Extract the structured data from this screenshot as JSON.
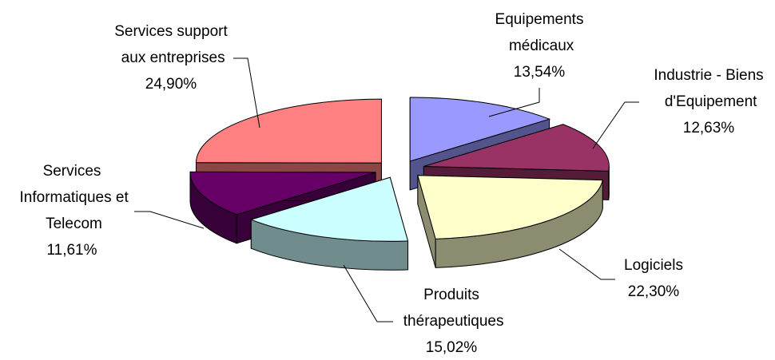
{
  "chart_data": {
    "type": "pie3d",
    "categories": [
      "Equipements médicaux",
      "Industrie - Biens d'Equipement",
      "Logiciels",
      "Produits thérapeutiques",
      "Services Informatiques et Telecom",
      "Services support aux entreprises"
    ],
    "values": [
      13.54,
      12.63,
      22.3,
      15.02,
      11.61,
      24.9
    ],
    "value_labels": [
      "13,54%",
      "12,63%",
      "22,30%",
      "15,02%",
      "11,61%",
      "24,90%"
    ],
    "colors": [
      "#9999ff",
      "#993366",
      "#ffffcc",
      "#ccffff",
      "#660066",
      "#ff8080"
    ]
  }
}
